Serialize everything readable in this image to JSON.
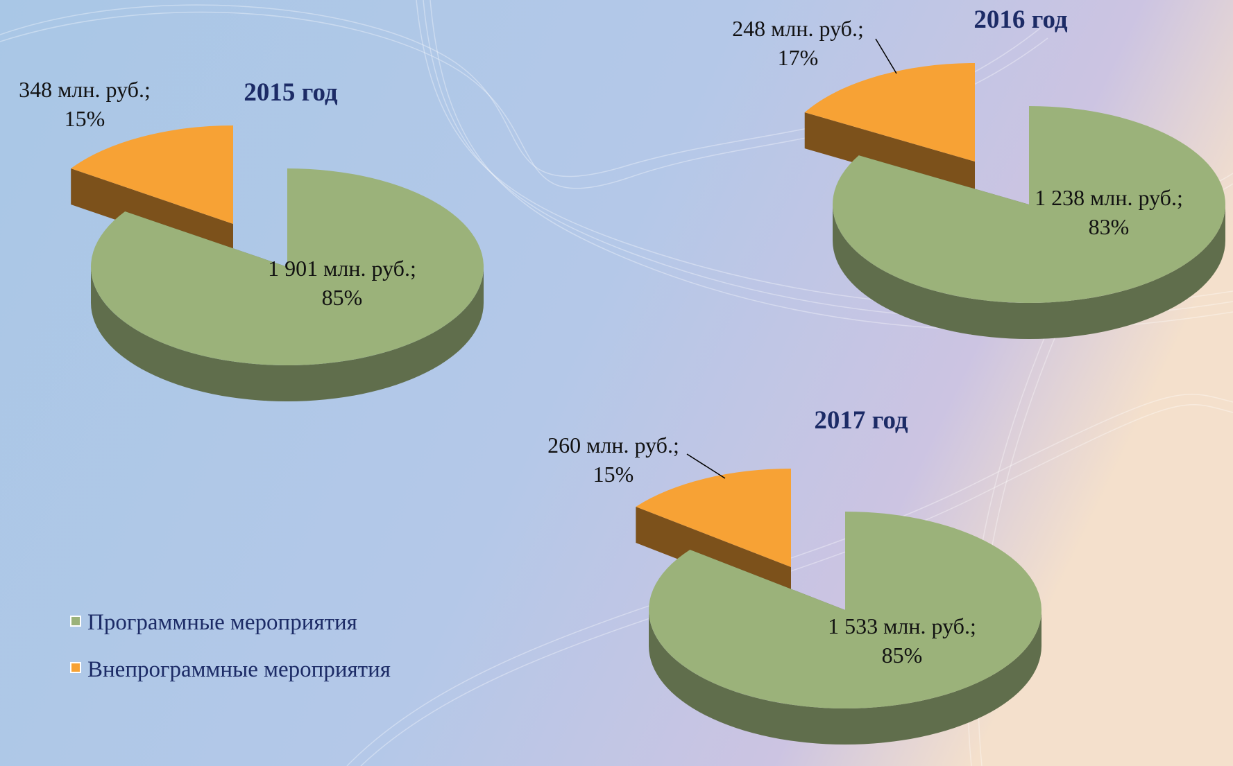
{
  "chart_data": [
    {
      "type": "pie",
      "title": "2015 год",
      "values": [
        1901,
        348
      ],
      "value_labels": [
        "1 901 млн. руб.;",
        "348 млн. руб.;"
      ],
      "percent_labels": [
        "85%",
        "15%"
      ]
    },
    {
      "type": "pie",
      "title": "2016 год",
      "values": [
        1238,
        248
      ],
      "value_labels": [
        "1 238 млн. руб.;",
        "248 млн. руб.;"
      ],
      "percent_labels": [
        "83%",
        "17%"
      ]
    },
    {
      "type": "pie",
      "title": "2017 год",
      "values": [
        1533,
        260
      ],
      "value_labels": [
        "1 533 млн. руб.;",
        "260 млн. руб.;"
      ],
      "percent_labels": [
        "85%",
        "15%"
      ]
    }
  ],
  "legend": {
    "items": [
      "Программные мероприятия",
      "Внепрограммные мероприятия"
    ],
    "colors": [
      "#9bb27a",
      "#f7a235"
    ]
  }
}
